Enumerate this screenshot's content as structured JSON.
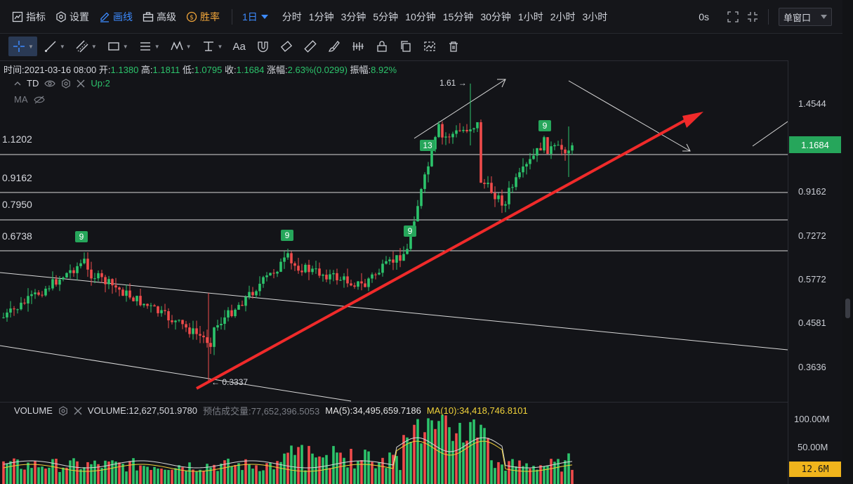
{
  "toolbar": {
    "indicator_label": "指标",
    "settings_label": "设置",
    "draw_label": "画线",
    "advanced_label": "高级",
    "winrate_label": "胜率",
    "period_selected": "1日",
    "periods": [
      "分时",
      "1分钟",
      "3分钟",
      "5分钟",
      "10分钟",
      "15分钟",
      "30分钟",
      "1小时",
      "2小时",
      "3小时"
    ],
    "seconds_label": "0s",
    "window_mode": "单窗口"
  },
  "draw_tools": {
    "text_tool_label": "Aa"
  },
  "info": {
    "time_label": "时间:",
    "time_value": "2021-03-16 08:00",
    "open_label": "开:",
    "open_value": "1.1380",
    "high_label": "高:",
    "high_value": "1.1811",
    "low_label": "低:",
    "low_value": "1.0795",
    "close_label": "收:",
    "close_value": "1.1684",
    "change_label": "涨幅:",
    "change_value": "2.63%(0.0299)",
    "amplitude_label": "振幅:",
    "amplitude_value": "8.92%"
  },
  "indicators": {
    "td_name": "TD",
    "td_value": "Up:2",
    "ma_name": "MA"
  },
  "price_axis": {
    "labels": [
      "1.4544",
      "0.9162",
      "0.7272",
      "0.5772",
      "0.4581",
      "0.3636"
    ],
    "current_price": "1.1684"
  },
  "levels": [
    "1.1202",
    "0.9162",
    "0.7950",
    "0.6738"
  ],
  "annotations": {
    "high_mark": "1.61 →",
    "low_mark": "← 0.3337",
    "td_marks": [
      "9",
      "9",
      "9",
      "13",
      "9"
    ]
  },
  "volume": {
    "name": "VOLUME",
    "value_label": "VOLUME:12,627,501.9780",
    "est_label": "预估成交量:77,652,396.5053",
    "ma5_label": "MA(5):34,495,659.7186",
    "ma10_label": "MA(10):34,418,746.8101",
    "axis_labels": [
      "100.00M",
      "50.00M"
    ],
    "current_tag": "12.6M"
  },
  "colors": {
    "up": "#2cc36b",
    "down": "#ef4b4b",
    "accent": "#3d8bff",
    "ma5": "#d9d9d9",
    "ma10": "#f0d23a",
    "trend_arrow": "#f02a2a"
  }
}
